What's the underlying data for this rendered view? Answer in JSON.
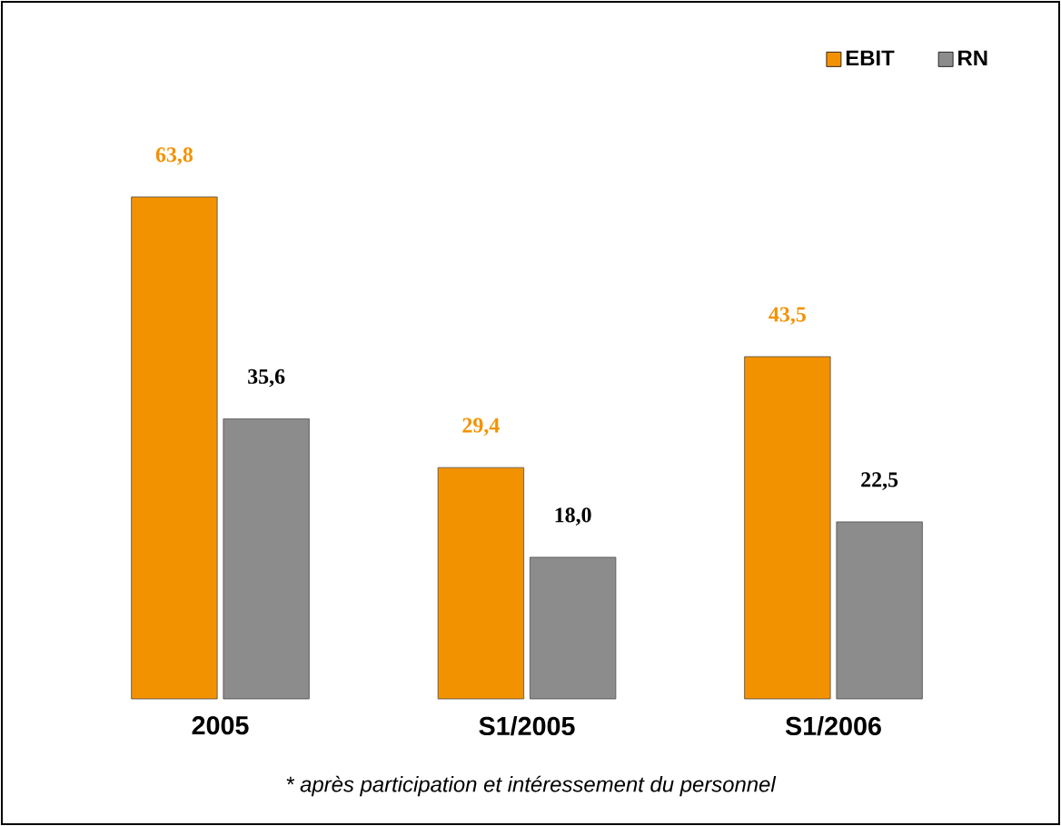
{
  "chart_data": {
    "type": "bar",
    "categories": [
      "2005",
      "S1/2005",
      "S1/2006"
    ],
    "series": [
      {
        "name": "EBIT",
        "color": "#f39200",
        "values": [
          63.8,
          29.4,
          43.5
        ],
        "value_labels": [
          "63,8",
          "29,4",
          "43,5"
        ]
      },
      {
        "name": "RN",
        "color": "#8c8c8c",
        "values": [
          35.6,
          18.0,
          22.5
        ],
        "value_labels": [
          "35,6",
          "18,0",
          "22,5"
        ]
      }
    ],
    "legend": "top right",
    "annotations": [
      "* après participation et intéressement du personnel"
    ]
  }
}
